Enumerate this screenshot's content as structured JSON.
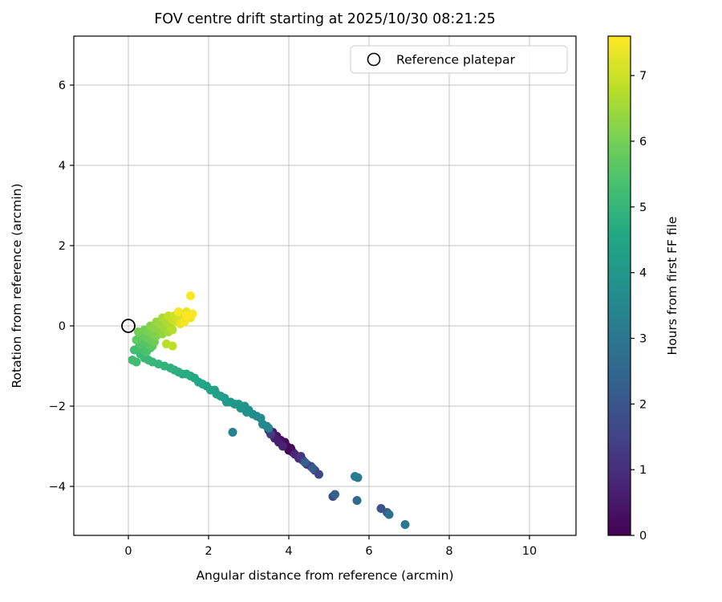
{
  "chart_data": {
    "type": "scatter",
    "title": "FOV centre drift starting at 2025/10/30 08:21:25",
    "xlabel": "Angular distance from reference (arcmin)",
    "ylabel": "Rotation from reference (arcmin)",
    "xlim": [
      -1.36,
      11.16
    ],
    "ylim": [
      -5.22,
      7.22
    ],
    "xticks": [
      0,
      2,
      4,
      6,
      8,
      10
    ],
    "yticks": [
      -4,
      -2,
      0,
      2,
      4,
      6
    ],
    "grid": true,
    "legend": [
      {
        "label": "Reference platepar",
        "marker": "open-circle",
        "position": "upper right"
      }
    ],
    "reference_point": {
      "x": 0,
      "y": 0
    },
    "colorbar": {
      "label": "Hours from first FF file",
      "min": 0,
      "max": 7.6,
      "ticks": [
        0,
        1,
        2,
        3,
        4,
        5,
        6,
        7
      ]
    },
    "colormap": {
      "name": "viridis",
      "stops": [
        [
          0.0,
          "#440154"
        ],
        [
          0.1,
          "#482475"
        ],
        [
          0.2,
          "#414487"
        ],
        [
          0.3,
          "#355f8d"
        ],
        [
          0.4,
          "#2a788e"
        ],
        [
          0.5,
          "#21918c"
        ],
        [
          0.6,
          "#22a884"
        ],
        [
          0.7,
          "#44bf70"
        ],
        [
          0.8,
          "#7ad151"
        ],
        [
          0.9,
          "#bddf26"
        ],
        [
          1.0,
          "#fde725"
        ]
      ]
    },
    "marker_radius_px": 5.5,
    "points_format": "[angular_distance_arcmin, rotation_arcmin, hours_from_first_FF]",
    "points": [
      [
        4.0,
        -3.1,
        0.0
      ],
      [
        3.95,
        -3.0,
        0.05
      ],
      [
        4.05,
        -3.05,
        0.1
      ],
      [
        3.9,
        -2.9,
        0.15
      ],
      [
        4.1,
        -3.15,
        0.2
      ],
      [
        3.8,
        -2.85,
        0.3
      ],
      [
        3.7,
        -2.75,
        0.4
      ],
      [
        3.6,
        -2.65,
        0.5
      ],
      [
        3.5,
        -2.6,
        0.55
      ],
      [
        3.65,
        -2.8,
        0.6
      ],
      [
        3.75,
        -2.9,
        0.65
      ],
      [
        3.85,
        -3.0,
        0.7
      ],
      [
        4.15,
        -3.2,
        0.8
      ],
      [
        4.25,
        -3.3,
        0.9
      ],
      [
        4.35,
        -3.35,
        1.0
      ],
      [
        4.45,
        -3.45,
        1.1
      ],
      [
        4.3,
        -3.25,
        1.2
      ],
      [
        3.55,
        -2.7,
        1.3
      ],
      [
        4.55,
        -3.5,
        1.4
      ],
      [
        4.65,
        -3.6,
        1.5
      ],
      [
        4.75,
        -3.7,
        1.6
      ],
      [
        5.1,
        -4.25,
        1.7
      ],
      [
        6.3,
        -4.55,
        1.9
      ],
      [
        6.45,
        -4.65,
        2.1
      ],
      [
        4.6,
        -3.55,
        2.2
      ],
      [
        4.4,
        -3.4,
        2.3
      ],
      [
        5.15,
        -4.2,
        2.4
      ],
      [
        5.7,
        -4.35,
        2.6
      ],
      [
        6.5,
        -4.7,
        2.8
      ],
      [
        6.9,
        -4.95,
        3.0
      ],
      [
        5.72,
        -3.78,
        3.1
      ],
      [
        5.65,
        -3.75,
        3.2
      ],
      [
        2.6,
        -2.65,
        3.35
      ],
      [
        3.5,
        -2.55,
        3.4
      ],
      [
        3.45,
        -2.5,
        3.5
      ],
      [
        3.35,
        -2.45,
        3.55
      ],
      [
        3.3,
        -2.3,
        3.6
      ],
      [
        3.2,
        -2.25,
        3.65
      ],
      [
        3.1,
        -2.2,
        3.7
      ],
      [
        3.0,
        -2.1,
        3.75
      ],
      [
        2.95,
        -2.15,
        3.8
      ],
      [
        2.9,
        -2.0,
        3.85
      ],
      [
        2.8,
        -2.05,
        3.9
      ],
      [
        2.75,
        -1.95,
        3.95
      ],
      [
        2.65,
        -1.95,
        4.0
      ],
      [
        2.55,
        -1.9,
        4.05
      ],
      [
        2.45,
        -1.9,
        4.1
      ],
      [
        2.4,
        -1.8,
        4.15
      ],
      [
        2.3,
        -1.75,
        4.2
      ],
      [
        2.2,
        -1.7,
        4.25
      ],
      [
        2.15,
        -1.6,
        4.3
      ],
      [
        2.05,
        -1.6,
        4.35
      ],
      [
        1.95,
        -1.5,
        4.4
      ],
      [
        1.85,
        -1.45,
        4.45
      ],
      [
        1.75,
        -1.4,
        4.5
      ],
      [
        1.65,
        -1.3,
        4.55
      ],
      [
        1.55,
        -1.25,
        4.6
      ],
      [
        1.45,
        -1.2,
        4.65
      ],
      [
        1.35,
        -1.2,
        4.7
      ],
      [
        1.25,
        -1.15,
        4.75
      ],
      [
        1.15,
        -1.1,
        4.8
      ],
      [
        1.05,
        -1.05,
        4.85
      ],
      [
        0.9,
        -1.0,
        4.9
      ],
      [
        0.75,
        -0.95,
        4.95
      ],
      [
        0.6,
        -0.9,
        5.0
      ],
      [
        0.5,
        -0.85,
        5.05
      ],
      [
        0.4,
        -0.8,
        5.1
      ],
      [
        0.3,
        -0.7,
        5.15
      ],
      [
        0.2,
        -0.9,
        5.2
      ],
      [
        0.1,
        -0.85,
        5.22
      ],
      [
        0.15,
        -0.6,
        5.25
      ],
      [
        0.25,
        -0.55,
        5.3
      ],
      [
        0.35,
        -0.6,
        5.35
      ],
      [
        0.45,
        -0.65,
        5.4
      ],
      [
        0.55,
        -0.55,
        5.45
      ],
      [
        0.3,
        -0.45,
        5.5
      ],
      [
        0.4,
        -0.4,
        5.55
      ],
      [
        0.5,
        -0.45,
        5.6
      ],
      [
        0.6,
        -0.5,
        5.65
      ],
      [
        0.2,
        -0.35,
        5.7
      ],
      [
        0.35,
        -0.25,
        5.75
      ],
      [
        0.45,
        -0.3,
        5.8
      ],
      [
        0.55,
        -0.35,
        5.85
      ],
      [
        0.65,
        -0.4,
        5.9
      ],
      [
        0.25,
        -0.15,
        5.95
      ],
      [
        0.4,
        -0.1,
        6.0
      ],
      [
        0.5,
        -0.15,
        6.05
      ],
      [
        0.6,
        -0.2,
        6.1
      ],
      [
        0.7,
        -0.25,
        6.15
      ],
      [
        0.55,
        0.0,
        6.2
      ],
      [
        0.65,
        -0.05,
        6.25
      ],
      [
        0.75,
        -0.1,
        6.3
      ],
      [
        0.85,
        -0.2,
        6.35
      ],
      [
        0.7,
        0.1,
        6.4
      ],
      [
        0.8,
        0.05,
        6.45
      ],
      [
        0.9,
        -0.05,
        6.5
      ],
      [
        1.0,
        -0.15,
        6.55
      ],
      [
        0.85,
        0.2,
        6.6
      ],
      [
        0.95,
        0.1,
        6.65
      ],
      [
        1.05,
        0.0,
        6.7
      ],
      [
        1.1,
        -0.1,
        6.75
      ],
      [
        0.95,
        -0.45,
        6.8
      ],
      [
        1.1,
        -0.5,
        6.85
      ],
      [
        1.0,
        0.25,
        6.9
      ],
      [
        1.1,
        0.15,
        6.95
      ],
      [
        1.15,
        0.25,
        7.0
      ],
      [
        1.2,
        0.1,
        7.05
      ],
      [
        1.25,
        0.2,
        7.1
      ],
      [
        1.3,
        0.3,
        7.15
      ],
      [
        1.35,
        0.15,
        7.2
      ],
      [
        1.4,
        0.25,
        7.25
      ],
      [
        1.45,
        0.35,
        7.3
      ],
      [
        1.3,
        0.05,
        7.35
      ],
      [
        1.5,
        0.3,
        7.4
      ],
      [
        1.55,
        0.2,
        7.45
      ],
      [
        1.4,
        0.1,
        7.5
      ],
      [
        1.25,
        0.35,
        7.52
      ],
      [
        1.6,
        0.3,
        7.55
      ],
      [
        1.55,
        0.75,
        7.58
      ],
      [
        1.45,
        0.25,
        7.6
      ]
    ],
    "style": {
      "grid_color": "#c6c6c6",
      "spine_color": "#000000",
      "legend_border_color": "#cccccc",
      "reference_marker_color": "#000000"
    }
  }
}
